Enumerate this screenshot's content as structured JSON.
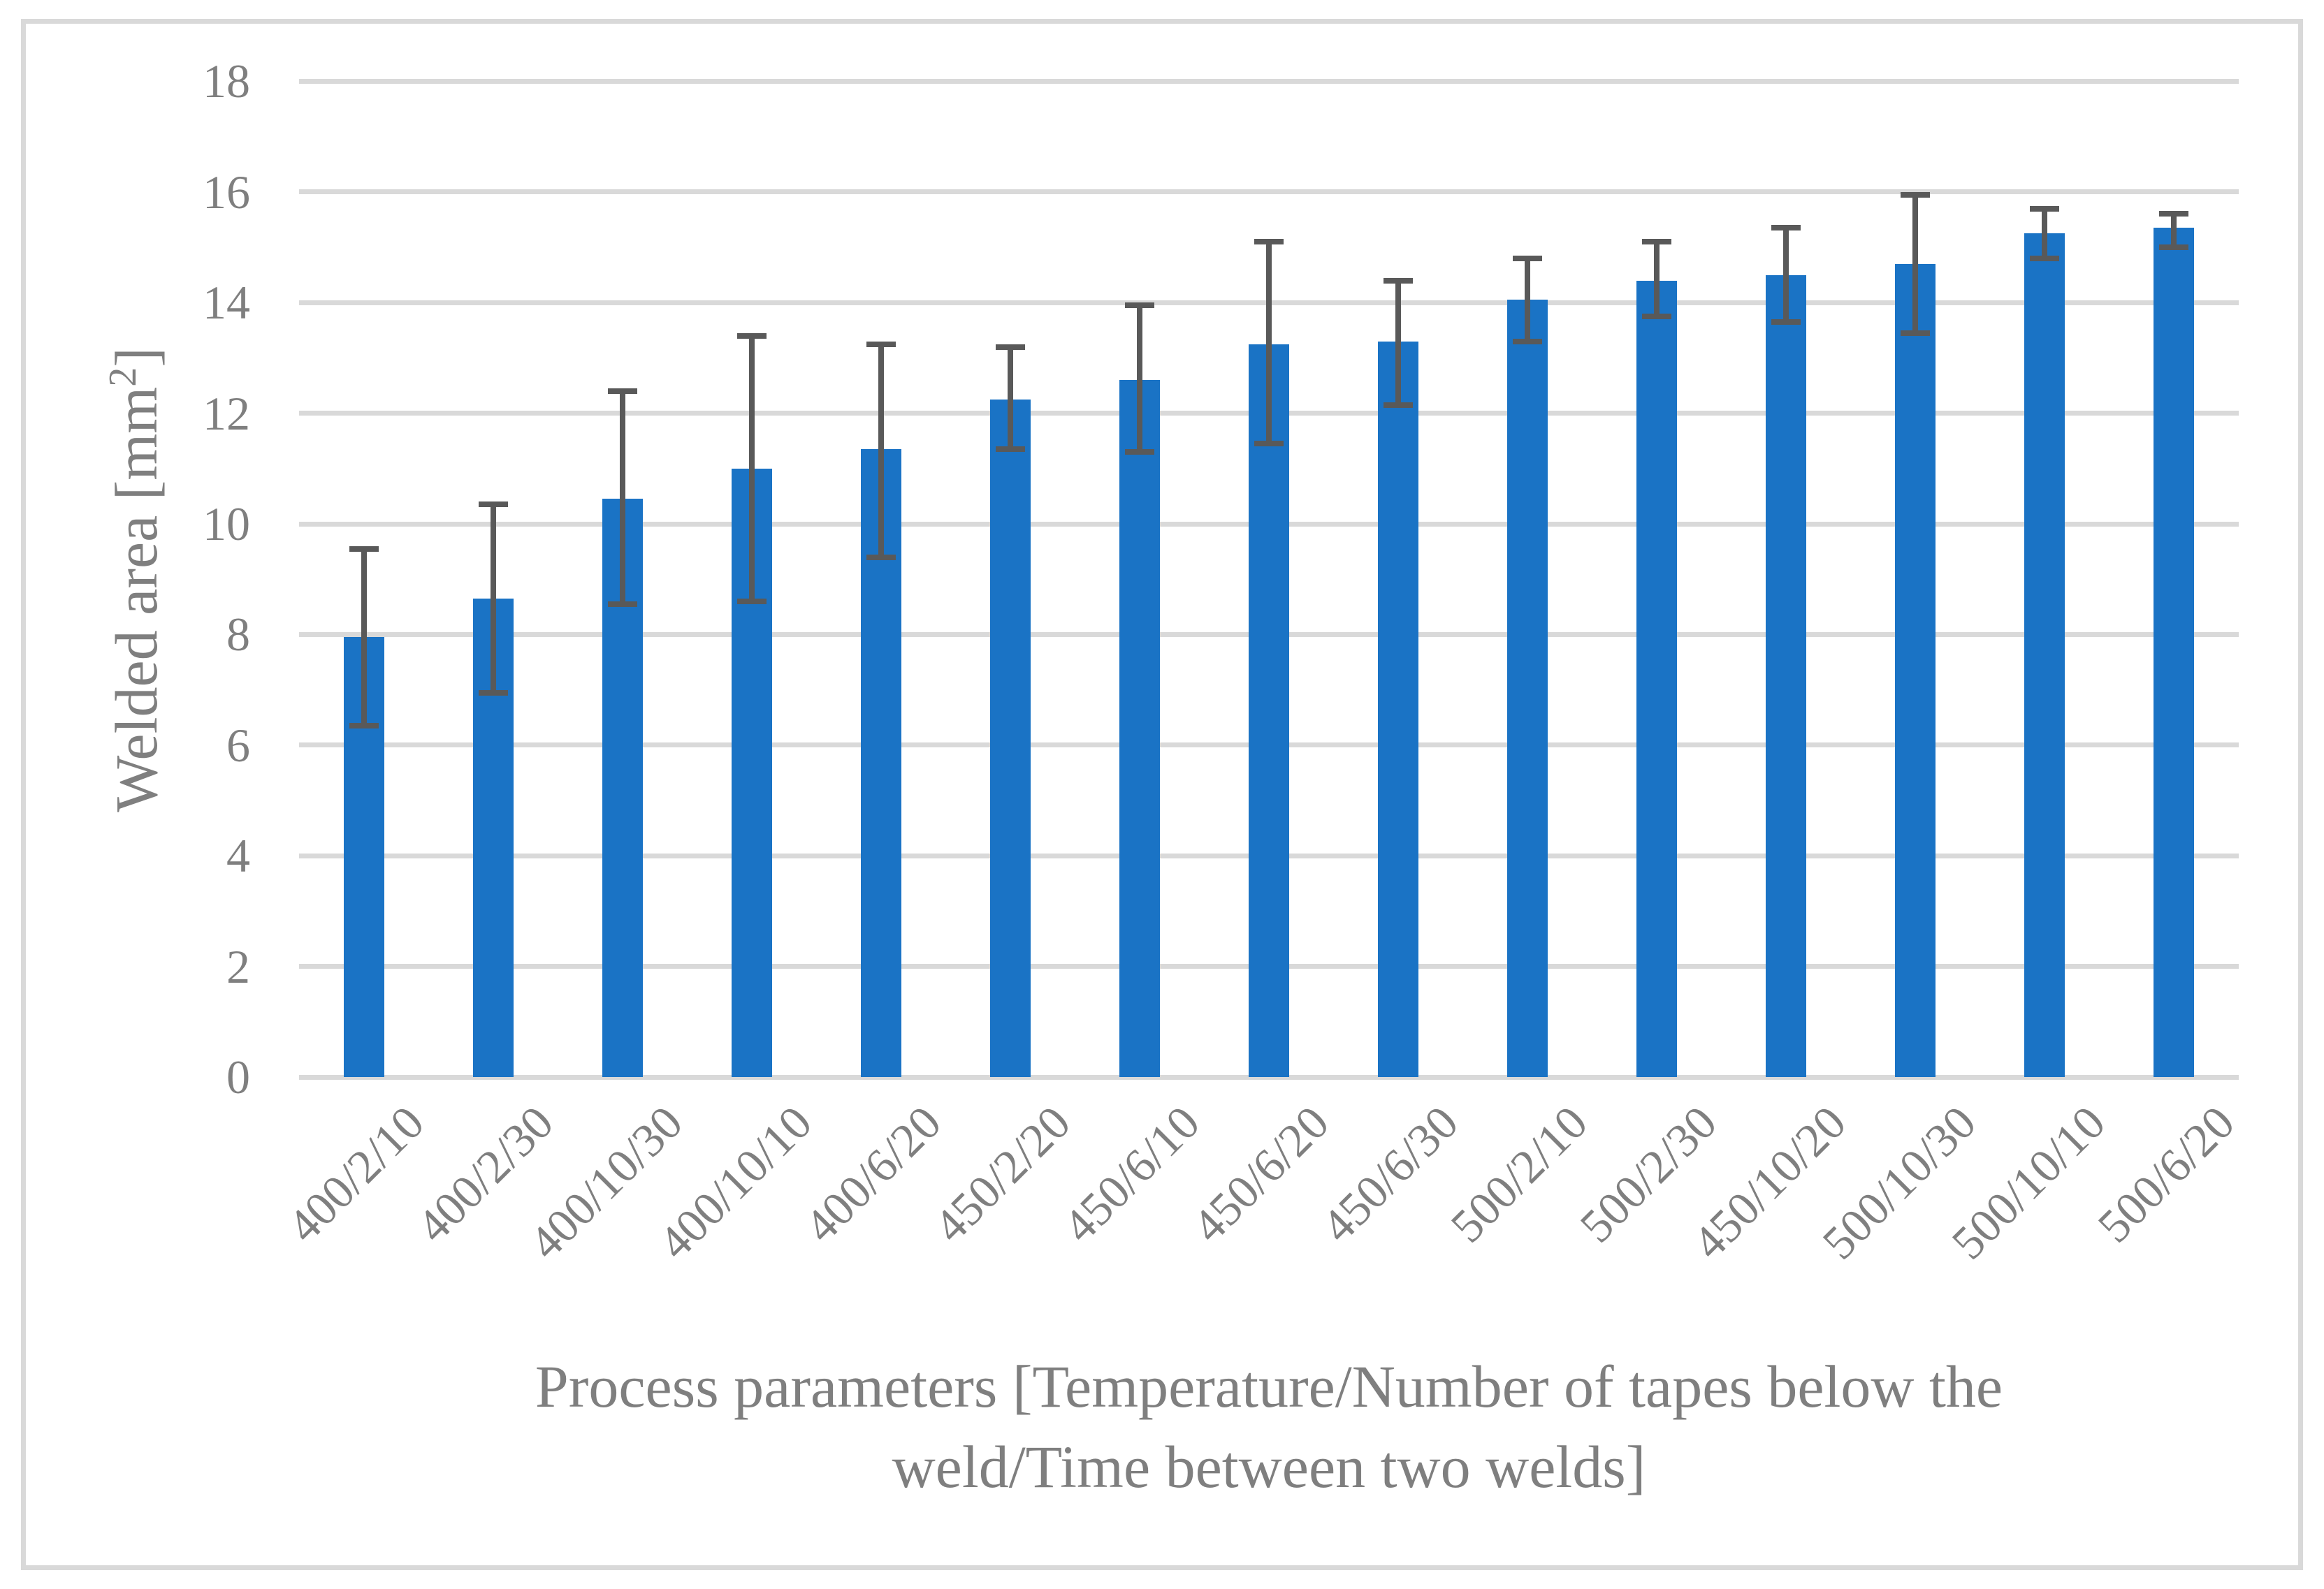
{
  "figure": {
    "background": "#FFFFFF",
    "border_color": "#D9D9D9"
  },
  "chart_data": {
    "type": "bar",
    "title": "",
    "categories": [
      "400/2/10",
      "400/2/30",
      "400/10/30",
      "400/10/10",
      "400/6/20",
      "450/2/20",
      "450/6/10",
      "450/6/20",
      "450/6/30",
      "500/2/10",
      "500/2/30",
      "450/10/20",
      "500/10/30",
      "500/10/10",
      "500/6/20"
    ],
    "series": [
      {
        "name": "Welded area",
        "values": [
          7.95,
          8.65,
          10.45,
          11.0,
          11.35,
          12.25,
          12.6,
          13.25,
          13.3,
          14.05,
          14.4,
          14.5,
          14.7,
          15.25,
          15.35
        ],
        "error_low": [
          6.35,
          6.95,
          8.55,
          8.6,
          9.4,
          11.35,
          11.3,
          11.45,
          12.15,
          13.3,
          13.75,
          13.65,
          13.45,
          14.8,
          15.0
        ],
        "error_high": [
          9.55,
          10.35,
          12.4,
          13.4,
          13.25,
          13.2,
          13.95,
          15.1,
          14.4,
          14.8,
          15.1,
          15.35,
          15.95,
          15.7,
          15.6
        ]
      }
    ],
    "ylabel": "Welded area [mm²]",
    "ylabel_parts": {
      "pre": "Welded area [mm",
      "sup": "2",
      "post": "]"
    },
    "xlabel_line1": "Process parameters [Temperature/Number of tapes below the",
    "xlabel_line2": "weld/Time between two welds]",
    "ylim": [
      0,
      18
    ],
    "yticks": [
      0,
      2,
      4,
      6,
      8,
      10,
      12,
      14,
      16,
      18
    ],
    "grid": true,
    "legend_position": "none",
    "colors": {
      "bar": "#1A73C5",
      "error": "#595959",
      "grid": "#D9D9D9",
      "text": "#7F7F7F"
    }
  }
}
